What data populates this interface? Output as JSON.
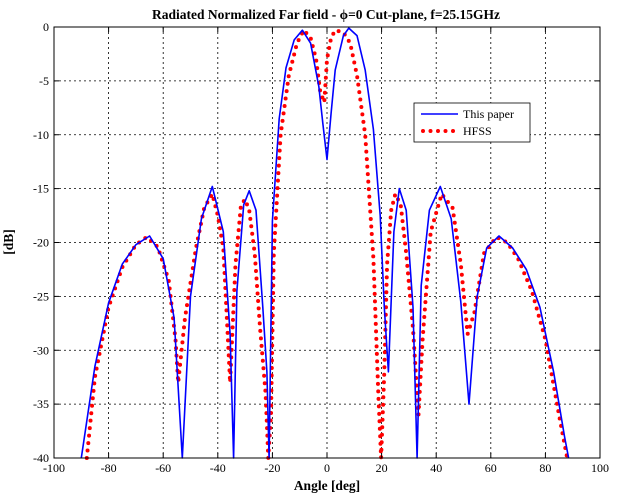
{
  "chart_data": {
    "type": "line",
    "title": "Radiated Normalized Far field - ϕ=0 Cut-plane, f=25.15GHz",
    "xlabel": "Angle [deg]",
    "ylabel": "[dB]",
    "xlim": [
      -100,
      100
    ],
    "ylim": [
      -40,
      0
    ],
    "xticks": [
      "-100",
      "-80",
      "-60",
      "-40",
      "-20",
      "0",
      "20",
      "40",
      "60",
      "80",
      "100"
    ],
    "yticks": [
      "0",
      "-5",
      "-10",
      "-15",
      "-20",
      "-25",
      "-30",
      "-35",
      "-40"
    ],
    "grid": true,
    "legend_position": "top-right",
    "series": [
      {
        "name": "This paper",
        "color": "#0000ff",
        "style": "solid",
        "x": [
          -90.0,
          -85.0,
          -80.0,
          -75.0,
          -70.0,
          -65.0,
          -60.0,
          -56.0,
          -53.0,
          -50.0,
          -46.0,
          -42.0,
          -38.0,
          -35.5,
          -34.2,
          -33.0,
          -30.5,
          -28.5,
          -26.0,
          -23.5,
          -22.0,
          -21.2,
          -20.0,
          -17.5,
          -15.0,
          -12.0,
          -9.0,
          -6.0,
          -3.0,
          -1.5,
          0.0,
          1.5,
          3.0,
          6.0,
          8.0,
          11.0,
          14.0,
          17.0,
          19.5,
          21.0,
          22.5,
          24.5,
          26.5,
          29.0,
          31.5,
          33.0,
          34.5,
          37.5,
          41.5,
          45.5,
          49.0,
          52.0,
          55.0,
          58.5,
          63.0,
          68.0,
          73.0,
          78.0,
          83.0,
          87.0,
          88.5
        ],
        "y": [
          -40.0,
          -31.5,
          -25.6,
          -22.0,
          -20.2,
          -19.4,
          -21.5,
          -27.0,
          -40.0,
          -25.0,
          -17.8,
          -14.8,
          -19.0,
          -28.5,
          -40.0,
          -24.5,
          -16.5,
          -15.2,
          -17.0,
          -26.0,
          -32.0,
          -40.0,
          -18.0,
          -8.5,
          -3.8,
          -1.2,
          -0.3,
          -1.5,
          -5.5,
          -9.0,
          -12.3,
          -8.0,
          -4.0,
          -0.8,
          -0.1,
          -0.8,
          -4.0,
          -9.5,
          -17.5,
          -26.0,
          -32.0,
          -19.0,
          -15.0,
          -17.0,
          -26.0,
          -40.0,
          -24.0,
          -17.0,
          -14.8,
          -17.8,
          -25.5,
          -35.0,
          -25.0,
          -20.5,
          -19.4,
          -20.5,
          -22.5,
          -26.0,
          -32.0,
          -38.0,
          -40.0
        ]
      },
      {
        "name": "HFSS",
        "color": "#ff0000",
        "style": "dotted",
        "x": [
          -88.0,
          -85.0,
          -80.0,
          -75.0,
          -70.0,
          -66.0,
          -62.0,
          -58.0,
          -55.5,
          -54.5,
          -52.0,
          -48.0,
          -45.0,
          -42.0,
          -40.0,
          -38.0,
          -36.5,
          -35.5,
          -33.5,
          -31.5,
          -30.0,
          -28.5,
          -26.5,
          -24.5,
          -22.5,
          -21.5,
          -20.5,
          -19.5,
          -17.0,
          -14.0,
          -11.0,
          -8.5,
          -6.0,
          -4.0,
          -2.5,
          -1.0,
          0.0,
          1.5,
          3.0,
          6.0,
          8.5,
          11.0,
          14.0,
          17.0,
          18.8,
          19.8,
          21.0,
          22.0,
          23.5,
          25.0,
          27.0,
          29.0,
          31.5,
          33.5,
          35.0,
          38.0,
          42.0,
          46.0,
          49.0,
          51.5,
          54.0,
          57.5,
          62.0,
          66.0,
          70.0,
          75.0,
          80.0,
          85.0,
          88.0
        ],
        "y": [
          -40.0,
          -32.5,
          -26.0,
          -22.3,
          -20.2,
          -19.5,
          -20.4,
          -23.5,
          -29.0,
          -33.0,
          -27.0,
          -20.5,
          -16.8,
          -15.5,
          -17.5,
          -20.5,
          -28.0,
          -33.0,
          -22.0,
          -16.5,
          -16.0,
          -17.0,
          -21.0,
          -28.0,
          -34.0,
          -40.0,
          -36.0,
          -21.0,
          -10.0,
          -4.5,
          -1.5,
          -0.3,
          -1.0,
          -3.0,
          -6.0,
          -7.0,
          -3.0,
          -1.0,
          -0.3,
          -0.5,
          -1.5,
          -4.5,
          -10.0,
          -21.5,
          -34.0,
          -40.0,
          -32.0,
          -22.0,
          -17.0,
          -15.5,
          -16.5,
          -21.0,
          -28.0,
          -36.0,
          -29.0,
          -19.0,
          -15.5,
          -16.8,
          -22.0,
          -28.5,
          -26.5,
          -21.0,
          -19.5,
          -20.0,
          -21.5,
          -24.5,
          -29.0,
          -36.0,
          -40.0
        ]
      }
    ]
  }
}
